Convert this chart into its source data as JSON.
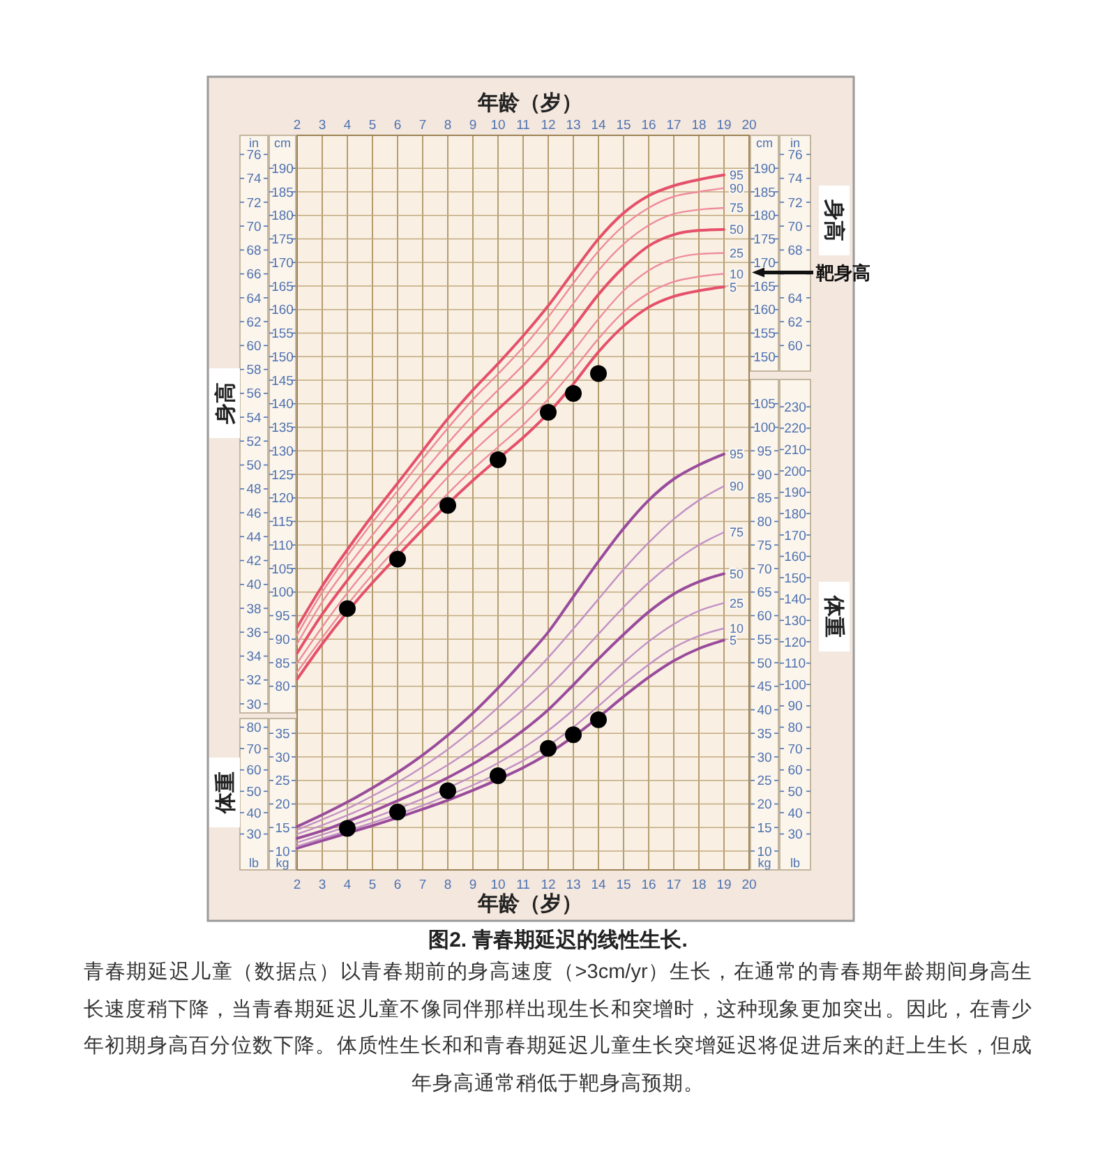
{
  "chart_data": [
    {
      "type": "line",
      "x2label": "年龄（岁）",
      "xlim": [
        2,
        20
      ],
      "x2lim": [
        2,
        20
      ],
      "x2ticks": [
        2,
        3,
        4,
        5,
        6,
        7,
        8,
        9,
        10,
        11,
        12,
        13,
        14,
        15,
        16,
        17,
        18,
        19,
        20
      ],
      "ylabel": "in",
      "ylim": [
        16.1,
        77.6
      ],
      "yticks": [
        30,
        32,
        34,
        36,
        38,
        40,
        42,
        44,
        46,
        48,
        50,
        52,
        54,
        56,
        58,
        60,
        62,
        64,
        66,
        68,
        70,
        72,
        74,
        76
      ],
      "y2label": "cm",
      "y2lim": [
        41,
        197
      ],
      "y2ticks": [
        150,
        155,
        160,
        165,
        170,
        175,
        180,
        185,
        190
      ],
      "y3label": "in",
      "y3lim": [
        16.1,
        77.6
      ],
      "y3ticks": [
        60,
        62,
        64,
        {
          "value": 66,
          "label": null
        },
        68,
        70,
        72,
        74,
        76
      ],
      "grid": "x",
      "x": [
        2,
        3,
        4,
        5,
        6,
        7,
        8,
        9,
        10,
        11,
        12,
        13,
        14,
        15,
        16,
        17,
        18,
        19
      ],
      "series": [
        {
          "name": "5",
          "color": "#e5506a",
          "axis": "y2",
          "values": [
            81.5,
            89.0,
            95.8,
            102.0,
            107.7,
            113.3,
            118.7,
            123.7,
            128.3,
            132.8,
            138.0,
            144.2,
            151.0,
            156.5,
            160.5,
            162.8,
            164.0,
            164.8
          ]
        },
        {
          "name": "10",
          "color": "#ee8c9b",
          "axis": "y2",
          "values": [
            83.0,
            90.3,
            97.3,
            103.7,
            109.6,
            115.3,
            120.9,
            126.1,
            130.8,
            135.5,
            141.0,
            147.2,
            153.8,
            159.5,
            163.5,
            165.9,
            167.0,
            167.6
          ]
        },
        {
          "name": "25",
          "color": "#ee8c9b",
          "axis": "y2",
          "values": [
            84.9,
            92.6,
            99.8,
            106.3,
            112.5,
            118.5,
            124.4,
            129.8,
            134.7,
            139.5,
            144.9,
            151.2,
            158.0,
            164.0,
            168.3,
            170.8,
            171.8,
            172.0
          ]
        },
        {
          "name": "50",
          "color": "#e5506a",
          "axis": "y2",
          "values": [
            87.0,
            95.3,
            102.5,
            109.2,
            115.5,
            121.9,
            128.0,
            133.7,
            138.8,
            143.8,
            149.5,
            156.2,
            163.2,
            169.0,
            173.5,
            175.9,
            176.8,
            177.0
          ]
        },
        {
          "name": "75",
          "color": "#ee8c9b",
          "axis": "y2",
          "values": [
            89.0,
            97.9,
            105.3,
            112.1,
            118.7,
            125.3,
            131.6,
            137.5,
            142.9,
            148.2,
            154.3,
            161.3,
            168.3,
            173.9,
            177.9,
            180.3,
            181.2,
            181.6
          ]
        },
        {
          "name": "90",
          "color": "#ee8c9b",
          "axis": "y2",
          "values": [
            90.9,
            100.0,
            107.7,
            114.8,
            121.5,
            128.3,
            134.8,
            140.9,
            146.3,
            152.0,
            158.4,
            165.6,
            172.4,
            177.8,
            181.6,
            184.0,
            185.0,
            185.8
          ]
        },
        {
          "name": "95",
          "color": "#e5506a",
          "axis": "y2",
          "values": [
            92.5,
            101.3,
            109.0,
            116.3,
            123.1,
            130.0,
            136.8,
            142.9,
            148.5,
            154.4,
            160.8,
            168.0,
            175.0,
            180.5,
            184.2,
            186.3,
            187.6,
            188.6
          ]
        }
      ],
      "annotations": [
        "身高",
        "身高",
        "靶身高"
      ]
    },
    {
      "type": "line",
      "title": "图2. 青春期延迟的线性生长.",
      "subtitle": "青春期延迟儿童（数据点）以青春期前的身高速度（>3cm/yr）生长，在通常的青春期年龄期间身高生长速度稍下降，当青春期延迟儿童不像同伴那样出现生长和突增时，这种现象更加突出。因此，在青少年初期身高百分位数下降。体质性生长和和青春期延迟儿童生长突增延迟将促进后来的赶上生长，但成年身高通常稍低于靶身高预期。",
      "xlabel": "年龄（岁）",
      "xlim": [
        2,
        20
      ],
      "xticks": [
        2,
        3,
        4,
        5,
        6,
        7,
        8,
        9,
        10,
        11,
        12,
        13,
        14,
        15,
        16,
        17,
        18,
        19,
        20
      ],
      "ylabel": "kg",
      "ylim": [
        6,
        162
      ],
      "yticks": [
        10,
        15,
        20,
        25,
        30,
        35
      ],
      "y2label": "lb",
      "y2lim": [
        13.2,
        357.1
      ],
      "y2ticks": [
        30,
        40,
        50,
        60,
        70,
        80,
        90,
        100,
        110,
        120,
        130,
        140,
        150,
        160,
        170,
        180,
        190,
        200,
        210,
        220,
        230
      ],
      "y3label": "lb",
      "y3lim": [
        13.2,
        357.1
      ],
      "y3ticks": [
        30,
        40,
        50,
        60,
        70,
        80
      ],
      "grid": "x",
      "x": [
        2,
        3,
        4,
        5,
        6,
        7,
        8,
        9,
        10,
        11,
        12,
        13,
        14,
        15,
        16,
        17,
        18,
        19
      ],
      "series": [
        {
          "name": "5",
          "color": "#9a4c9c",
          "values": [
            10.6,
            12.2,
            13.8,
            15.4,
            17.1,
            18.9,
            20.8,
            22.9,
            25.2,
            27.7,
            30.7,
            34.3,
            38.4,
            42.8,
            46.9,
            50.4,
            53.0,
            54.8
          ]
        },
        {
          "name": "10",
          "color": "#c391c5",
          "values": [
            11.0,
            12.7,
            14.3,
            16.0,
            17.8,
            19.7,
            21.8,
            24.0,
            26.5,
            29.2,
            32.4,
            36.3,
            40.8,
            45.4,
            49.6,
            53.2,
            55.7,
            57.3
          ]
        },
        {
          "name": "25",
          "color": "#c391c5",
          "values": [
            11.8,
            13.5,
            15.2,
            17.0,
            19.0,
            21.1,
            23.4,
            25.9,
            28.7,
            31.9,
            35.6,
            40.0,
            45.0,
            50.0,
            54.5,
            58.2,
            61.0,
            62.7
          ]
        },
        {
          "name": "50",
          "color": "#9a4c9c",
          "values": [
            12.7,
            14.3,
            16.3,
            18.4,
            20.7,
            23.0,
            25.6,
            28.5,
            31.8,
            35.6,
            40.0,
            45.3,
            50.8,
            56.0,
            60.8,
            64.6,
            67.2,
            68.9
          ]
        },
        {
          "name": "75",
          "color": "#c391c5",
          "values": [
            13.6,
            15.5,
            17.6,
            19.9,
            22.4,
            25.2,
            28.3,
            31.8,
            35.7,
            40.0,
            44.8,
            50.3,
            56.1,
            61.8,
            67.0,
            71.4,
            75.0,
            77.7
          ]
        },
        {
          "name": "90",
          "color": "#c391c5",
          "values": [
            14.5,
            16.7,
            19.0,
            21.7,
            24.6,
            27.9,
            31.6,
            35.8,
            40.5,
            45.6,
            51.1,
            57.2,
            63.5,
            69.8,
            75.5,
            80.5,
            84.5,
            87.5
          ]
        },
        {
          "name": "95",
          "color": "#9a4c9c",
          "values": [
            15.2,
            17.7,
            20.4,
            23.4,
            26.7,
            30.4,
            34.6,
            39.3,
            44.6,
            50.4,
            56.5,
            64.0,
            71.5,
            78.5,
            84.5,
            89.0,
            92.0,
            94.3
          ]
        }
      ],
      "annotations": [
        "体重",
        "体重"
      ]
    },
    {
      "type": "scatter",
      "xlim": [
        2,
        20
      ],
      "tick_labels": "y",
      "ylabel": "cm",
      "ylim": [
        41,
        197
      ],
      "yticks": [
        80,
        85,
        90,
        95,
        100,
        105,
        110,
        115,
        120,
        125,
        130,
        135,
        140,
        145,
        150,
        155,
        160,
        165,
        170,
        175,
        180,
        185,
        190
      ],
      "y2label": "kg",
      "y2lim": [
        6,
        162
      ],
      "y2ticks": [
        10,
        15,
        20,
        25,
        30,
        35,
        40,
        45,
        50,
        55,
        60,
        65,
        70,
        75,
        80,
        85,
        90,
        95,
        100,
        105
      ],
      "grid": "y",
      "marker": "circle",
      "series": [
        {
          "color": "#000000",
          "x": [
            4,
            6,
            8,
            10,
            12,
            13,
            14
          ],
          "values": [
            96.5,
            107.0,
            118.4,
            128.1,
            138.2,
            142.2,
            146.4
          ]
        },
        {
          "color": "#000000",
          "axis": "y2",
          "x": [
            4,
            6,
            8,
            10,
            12,
            13,
            14
          ],
          "values": [
            14.8,
            18.3,
            22.8,
            26.0,
            31.8,
            34.7,
            37.9
          ]
        }
      ]
    }
  ]
}
